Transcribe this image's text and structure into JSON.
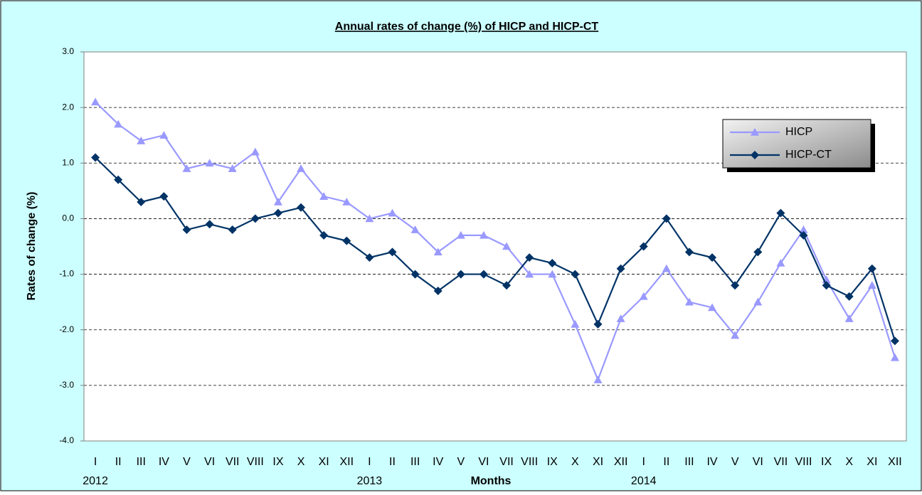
{
  "chart_data": {
    "type": "line",
    "title": "Annual rates of change (%) of HICP and HICP-CT",
    "y_label": "Rates of change (%)",
    "x_label": "Months",
    "categories": [
      "I",
      "II",
      "III",
      "IV",
      "V",
      "VI",
      "VII",
      "VIII",
      "IX",
      "X",
      "XI",
      "XII",
      "I",
      "II",
      "III",
      "IV",
      "V",
      "VI",
      "VII",
      "VIII",
      "IX",
      "X",
      "XI",
      "XII",
      "I",
      "II",
      "III",
      "IV",
      "V",
      "VI",
      "VII",
      "VIII",
      "IX",
      "X",
      "XI",
      "XII"
    ],
    "year_labels": [
      "2012",
      null,
      null,
      null,
      null,
      null,
      null,
      null,
      null,
      null,
      null,
      null,
      "2013",
      null,
      null,
      null,
      null,
      null,
      null,
      null,
      null,
      null,
      null,
      null,
      "2014",
      null,
      null,
      null,
      null,
      null,
      null,
      null,
      null,
      null,
      null,
      null
    ],
    "series": [
      {
        "name": "HICP",
        "color": "#9999ff",
        "marker": "triangle",
        "values": [
          2.1,
          1.7,
          1.4,
          1.5,
          0.9,
          1.0,
          0.9,
          1.2,
          0.3,
          0.9,
          0.4,
          0.3,
          0.0,
          0.1,
          -0.2,
          -0.6,
          -0.3,
          -0.3,
          -0.5,
          -1.0,
          -1.0,
          -1.9,
          -2.9,
          -1.8,
          -1.4,
          -0.9,
          -1.5,
          -1.6,
          -2.1,
          -1.5,
          -0.8,
          -0.2,
          -1.1,
          -1.8,
          -1.2,
          -2.5
        ]
      },
      {
        "name": "HICP-CT",
        "color": "#003366",
        "marker": "diamond",
        "values": [
          1.1,
          0.7,
          0.3,
          0.4,
          -0.2,
          -0.1,
          -0.2,
          0.0,
          0.1,
          0.2,
          -0.3,
          -0.4,
          -0.7,
          -0.6,
          -1.0,
          -1.3,
          -1.0,
          -1.0,
          -1.2,
          -0.7,
          -0.8,
          -1.0,
          -1.9,
          -0.9,
          -0.5,
          0.0,
          -0.6,
          -0.7,
          -1.2,
          -0.6,
          0.1,
          -0.3,
          -1.2,
          -1.4,
          -0.9,
          -2.2
        ]
      }
    ],
    "ylim": [
      -4,
      3
    ],
    "yticks": [
      {
        "value": -4,
        "label": "-4.0"
      },
      {
        "value": -3,
        "label": "-3.0"
      },
      {
        "value": -2,
        "label": "-2.0"
      },
      {
        "value": -1,
        "label": "-1.0"
      },
      {
        "value": 0,
        "label": "0.0"
      },
      {
        "value": 1,
        "label": "1.0"
      },
      {
        "value": 2,
        "label": "2.0"
      },
      {
        "value": 3,
        "label": "3.0"
      }
    ],
    "grid": true
  }
}
